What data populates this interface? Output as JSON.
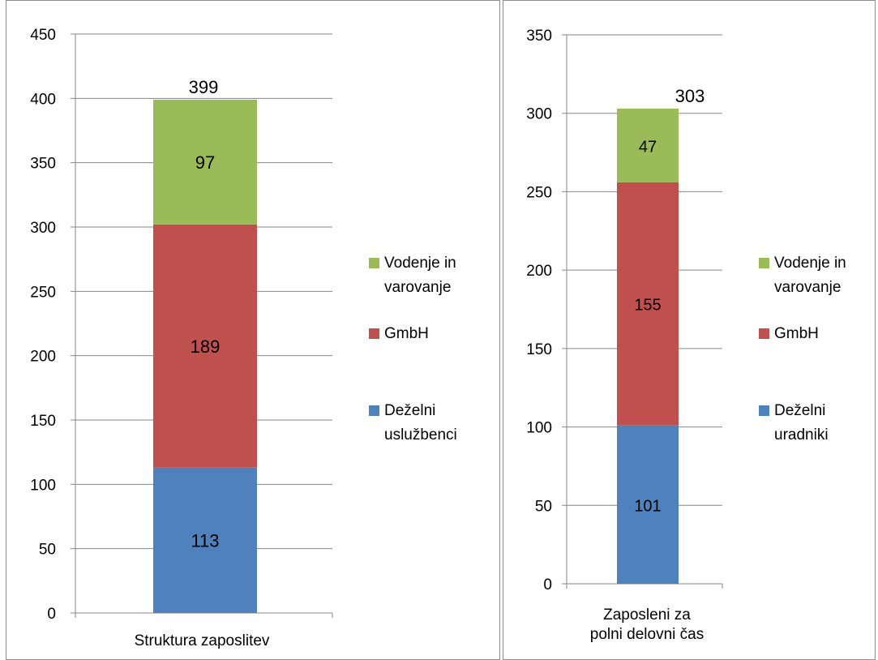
{
  "colors": {
    "dezelni": "#4f81bd",
    "gmbh": "#c0504d",
    "vodenje": "#9bbb59",
    "grid": "#868686"
  },
  "chart_data": [
    {
      "type": "bar",
      "stacked": true,
      "categories": [
        "Struktura zaposlitev"
      ],
      "ylim": [
        0,
        450
      ],
      "yticks": [
        0,
        50,
        100,
        150,
        200,
        250,
        300,
        350,
        400,
        450
      ],
      "grid": true,
      "legend_position": "right",
      "series": [
        {
          "name": "Deželni uslužbenci",
          "legend_lines": [
            "Deželni",
            "uslužbenci"
          ],
          "values": [
            113
          ],
          "color_key": "dezelni"
        },
        {
          "name": "GmbH",
          "legend_lines": [
            "GmbH"
          ],
          "values": [
            189
          ],
          "color_key": "gmbh"
        },
        {
          "name": "Vodenje in varovanje",
          "legend_lines": [
            "Vodenje in",
            "varovanje"
          ],
          "values": [
            97
          ],
          "color_key": "vodenje"
        }
      ],
      "total_label": "399",
      "category_label_lines": [
        "Struktura zaposlitev"
      ]
    },
    {
      "type": "bar",
      "stacked": true,
      "categories": [
        "Zaposleni za polni delovni čas"
      ],
      "ylim": [
        0,
        350
      ],
      "yticks": [
        0,
        50,
        100,
        150,
        200,
        250,
        300,
        350
      ],
      "grid": true,
      "legend_position": "right",
      "series": [
        {
          "name": "Deželni uradniki",
          "legend_lines": [
            "Deželni",
            "uradniki"
          ],
          "values": [
            101
          ],
          "color_key": "dezelni"
        },
        {
          "name": "GmbH",
          "legend_lines": [
            "GmbH"
          ],
          "values": [
            155
          ],
          "color_key": "gmbh"
        },
        {
          "name": "Vodenje in varovanje",
          "legend_lines": [
            "Vodenje in",
            "varovanje"
          ],
          "values": [
            47
          ],
          "color_key": "vodenje"
        }
      ],
      "total_label": "303",
      "category_label_lines": [
        "Zaposleni za",
        "polni delovni čas"
      ]
    }
  ]
}
